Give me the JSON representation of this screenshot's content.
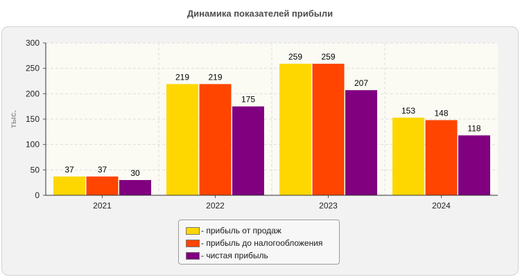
{
  "title": "Динамика показателей прибыли",
  "chart_data": {
    "type": "bar",
    "categories": [
      "2021",
      "2022",
      "2023",
      "2024"
    ],
    "series": [
      {
        "name": "- прибыль от продаж",
        "color": "#ffd700",
        "values": [
          37,
          219,
          259,
          153
        ]
      },
      {
        "name": "- прибыль до налогообложения",
        "color": "#ff4500",
        "values": [
          37,
          219,
          259,
          148
        ]
      },
      {
        "name": "- чистая прибыль",
        "color": "#800080",
        "values": [
          30,
          175,
          207,
          118
        ]
      }
    ],
    "ylabel": "тыс.",
    "ylim": [
      0,
      300
    ],
    "yticks": [
      0,
      50,
      100,
      150,
      200,
      250,
      300
    ],
    "grid": true,
    "legend_position": "bottom-center",
    "data_labels": true
  }
}
